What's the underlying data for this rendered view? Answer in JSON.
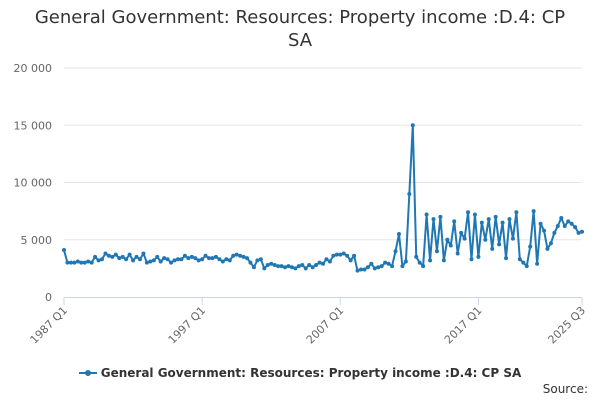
{
  "chart_data": {
    "type": "line",
    "title_lines": [
      "General Government: Resources: Property income :D.4: CP",
      "SA"
    ],
    "xlabel": "",
    "ylabel": "",
    "ylim": [
      0,
      20000
    ],
    "y_ticks": [
      0,
      5000,
      10000,
      15000,
      20000
    ],
    "y_tick_labels": [
      "0",
      "5 000",
      "10 000",
      "15 000",
      "20 000"
    ],
    "x_ticks": [
      "1987 Q1",
      "1997 Q1",
      "2007 Q1",
      "2017 Q1",
      "2025 Q3"
    ],
    "grid": true,
    "legend_position": "bottom",
    "color": "#1f77b4",
    "start_period": "1987 Q1",
    "end_period": "2025 Q3",
    "series": [
      {
        "name": "General Government: Resources: Property income :D.4: CP SA",
        "values": [
          4100,
          3000,
          3000,
          3000,
          3100,
          3000,
          3000,
          3100,
          3000,
          3500,
          3200,
          3300,
          3800,
          3600,
          3500,
          3700,
          3400,
          3500,
          3300,
          3700,
          3200,
          3500,
          3300,
          3800,
          3000,
          3100,
          3200,
          3500,
          3100,
          3400,
          3300,
          3000,
          3200,
          3300,
          3300,
          3600,
          3400,
          3500,
          3400,
          3200,
          3300,
          3600,
          3400,
          3400,
          3500,
          3300,
          3100,
          3300,
          3200,
          3600,
          3700,
          3600,
          3500,
          3400,
          3000,
          2600,
          3200,
          3300,
          2500,
          2800,
          2900,
          2800,
          2700,
          2700,
          2600,
          2700,
          2600,
          2500,
          2700,
          2800,
          2500,
          2800,
          2600,
          2800,
          3000,
          2900,
          3300,
          3100,
          3600,
          3700,
          3700,
          3800,
          3600,
          3200,
          3600,
          2300,
          2400,
          2400,
          2600,
          2900,
          2500,
          2600,
          2700,
          3000,
          2900,
          2700,
          4000,
          5500,
          2700,
          3100,
          9000,
          15000,
          3500,
          3000,
          2700,
          7200,
          3200,
          6800,
          4000,
          7000,
          3200,
          5000,
          4500,
          6600,
          3800,
          5600,
          5100,
          7400,
          3300,
          7200,
          3500,
          6500,
          5000,
          6800,
          4200,
          7000,
          4600,
          6500,
          3400,
          6800,
          5100,
          7400,
          3300,
          3000,
          2700,
          4400,
          7500,
          2900,
          6400,
          5800,
          4200,
          4700,
          5600,
          6200,
          6900,
          6200,
          6600,
          6400,
          6100,
          5600,
          5700
        ]
      }
    ],
    "legend_label": "General Government: Resources: Property income :D.4: CP SA",
    "source_label": "Source:"
  }
}
